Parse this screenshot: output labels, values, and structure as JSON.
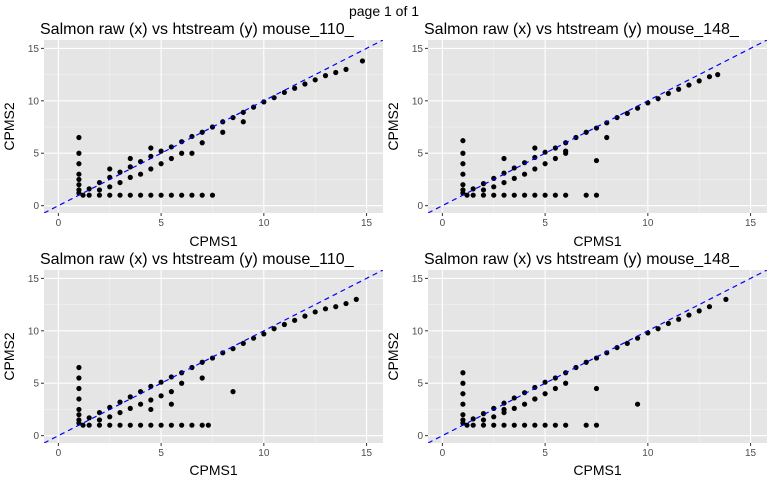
{
  "page_label": "page 1 of 1",
  "colors": {
    "panel_background": "#e5e5e5",
    "grid_major": "#ffffff",
    "points": "#000000",
    "reference_line": "#0000ff",
    "tick_marks": "#333333"
  },
  "chart_data": [
    {
      "type": "scatter",
      "title": "Salmon raw (x) vs htstream (y) mouse_110_",
      "xlabel": "CPMS1",
      "ylabel": "CPMS2",
      "xlim": [
        -0.7,
        15.8
      ],
      "ylim": [
        -0.7,
        15.8
      ],
      "x_ticks": [
        0,
        5,
        10,
        15
      ],
      "y_ticks": [
        0,
        5,
        10,
        15
      ],
      "grid": true,
      "reference_line": {
        "slope": 1,
        "intercept": 0,
        "style": "dashed"
      },
      "series": [
        {
          "x": [
            1.0,
            1.0,
            1.0,
            1.0,
            1.0,
            1.0,
            1.0,
            1.0,
            1.2,
            1.5,
            2.0,
            2.5,
            3.0,
            3.5,
            4.0,
            4.5,
            5.0,
            5.5,
            6.0,
            6.5,
            7.0,
            7.5,
            1.5,
            2.0,
            2.5,
            3.0,
            3.5,
            4.0,
            4.5,
            5.0,
            5.5,
            6.0,
            6.5,
            7.0,
            7.5,
            8.0,
            8.5,
            9.0,
            9.5,
            10.0,
            10.5,
            11.0,
            11.5,
            12.0,
            12.5,
            13.0,
            13.5,
            14.0,
            14.8,
            2.0,
            2.5,
            3.0,
            3.5,
            4.0,
            4.5,
            5.0,
            5.5,
            6.0,
            7.0,
            8.0,
            9.0,
            2.5,
            3.5,
            4.5,
            6.5
          ],
          "y": [
            6.5,
            5.0,
            4.0,
            3.0,
            2.5,
            2.0,
            1.5,
            1.2,
            1.0,
            1.0,
            1.0,
            1.0,
            1.0,
            1.0,
            1.0,
            1.0,
            1.0,
            1.0,
            1.0,
            1.0,
            1.0,
            1.0,
            1.6,
            2.2,
            2.7,
            3.2,
            3.7,
            4.2,
            4.7,
            5.2,
            5.6,
            6.1,
            6.6,
            7.0,
            7.5,
            8.0,
            8.4,
            8.9,
            9.4,
            9.9,
            10.3,
            10.8,
            11.2,
            11.6,
            12.0,
            12.4,
            12.7,
            13.0,
            13.8,
            1.5,
            1.8,
            2.2,
            2.7,
            3.0,
            3.5,
            4.0,
            4.5,
            5.0,
            6.0,
            7.0,
            8.0,
            3.5,
            4.5,
            5.5,
            5.0
          ]
        }
      ]
    },
    {
      "type": "scatter",
      "title": "Salmon raw (x) vs htstream (y) mouse_148_",
      "xlabel": "CPMS1",
      "ylabel": "CPMS2",
      "xlim": [
        -0.7,
        15.8
      ],
      "ylim": [
        -0.7,
        15.8
      ],
      "x_ticks": [
        0,
        5,
        10,
        15
      ],
      "y_ticks": [
        0,
        5,
        10,
        15
      ],
      "grid": true,
      "reference_line": {
        "slope": 1,
        "intercept": 0,
        "style": "dashed"
      },
      "series": [
        {
          "x": [
            1.0,
            1.0,
            1.0,
            1.0,
            1.0,
            1.0,
            1.0,
            1.2,
            1.5,
            2.0,
            2.5,
            3.0,
            3.5,
            4.0,
            4.5,
            5.0,
            5.5,
            6.0,
            7.0,
            7.5,
            1.5,
            2.0,
            2.5,
            3.0,
            3.5,
            4.0,
            4.5,
            5.0,
            5.5,
            6.0,
            6.5,
            7.0,
            7.5,
            8.0,
            8.5,
            9.0,
            9.5,
            10.0,
            10.5,
            11.0,
            11.5,
            12.0,
            12.5,
            13.0,
            13.4,
            2.0,
            2.5,
            3.0,
            3.5,
            4.0,
            4.5,
            5.0,
            5.5,
            6.0,
            7.5,
            8.0,
            3.0,
            4.5,
            6.0
          ],
          "y": [
            6.2,
            5.0,
            4.0,
            3.0,
            2.0,
            1.5,
            1.2,
            1.0,
            1.0,
            1.0,
            1.0,
            1.0,
            1.0,
            1.0,
            1.0,
            1.0,
            1.0,
            1.0,
            1.0,
            1.0,
            1.6,
            2.1,
            2.6,
            3.1,
            3.6,
            4.1,
            4.6,
            5.1,
            5.5,
            6.0,
            6.5,
            7.0,
            7.4,
            7.9,
            8.4,
            8.8,
            9.3,
            9.8,
            10.2,
            10.7,
            11.1,
            11.5,
            11.9,
            12.3,
            12.5,
            1.5,
            1.8,
            2.2,
            2.6,
            3.0,
            3.5,
            4.0,
            4.5,
            5.0,
            4.3,
            6.5,
            4.5,
            5.5,
            5.2
          ]
        }
      ]
    },
    {
      "type": "scatter",
      "title": "Salmon raw (x) vs htstream (y) mouse_110_",
      "xlabel": "CPMS1",
      "ylabel": "CPMS2",
      "xlim": [
        -0.7,
        15.8
      ],
      "ylim": [
        -0.7,
        15.8
      ],
      "x_ticks": [
        0,
        5,
        10,
        15
      ],
      "y_ticks": [
        0,
        5,
        10,
        15
      ],
      "grid": true,
      "reference_line": {
        "slope": 1,
        "intercept": 0,
        "style": "dashed"
      },
      "series": [
        {
          "x": [
            1.0,
            1.0,
            1.0,
            1.0,
            1.0,
            1.0,
            1.0,
            1.0,
            1.2,
            1.5,
            2.0,
            2.5,
            3.0,
            3.5,
            4.0,
            4.5,
            5.0,
            5.5,
            6.0,
            6.5,
            7.0,
            7.3,
            1.5,
            2.0,
            2.5,
            3.0,
            3.5,
            4.0,
            4.5,
            5.0,
            5.5,
            6.0,
            6.5,
            7.0,
            7.5,
            8.0,
            8.5,
            9.0,
            9.5,
            10.0,
            10.5,
            11.0,
            11.5,
            12.0,
            12.5,
            13.0,
            13.5,
            14.0,
            14.5,
            2.0,
            2.5,
            3.0,
            3.5,
            4.0,
            4.5,
            5.0,
            5.5,
            6.0,
            7.0,
            8.5,
            4.5,
            5.5
          ],
          "y": [
            6.5,
            5.5,
            4.5,
            3.5,
            2.5,
            2.0,
            1.5,
            1.2,
            1.0,
            1.0,
            1.0,
            1.0,
            1.0,
            1.0,
            1.0,
            1.0,
            1.0,
            1.0,
            1.0,
            1.0,
            1.0,
            1.0,
            1.7,
            2.2,
            2.7,
            3.2,
            3.7,
            4.2,
            4.7,
            5.1,
            5.6,
            6.0,
            6.5,
            7.0,
            7.4,
            7.9,
            8.3,
            8.8,
            9.3,
            9.7,
            10.2,
            10.6,
            11.0,
            11.4,
            11.8,
            12.1,
            12.3,
            12.6,
            13.0,
            1.5,
            1.8,
            2.2,
            2.6,
            3.0,
            3.4,
            3.8,
            4.2,
            5.0,
            5.5,
            4.2,
            2.5,
            3.0
          ]
        }
      ]
    },
    {
      "type": "scatter",
      "title": "Salmon raw (x) vs htstream (y) mouse_148_",
      "xlabel": "CPMS1",
      "ylabel": "CPMS2",
      "xlim": [
        -0.7,
        15.8
      ],
      "ylim": [
        -0.7,
        15.8
      ],
      "x_ticks": [
        0,
        5,
        10,
        15
      ],
      "y_ticks": [
        0,
        5,
        10,
        15
      ],
      "grid": true,
      "reference_line": {
        "slope": 1,
        "intercept": 0,
        "style": "dashed"
      },
      "series": [
        {
          "x": [
            1.0,
            1.0,
            1.0,
            1.0,
            1.0,
            1.0,
            1.0,
            1.2,
            1.5,
            2.0,
            2.5,
            3.0,
            3.5,
            4.0,
            4.5,
            5.0,
            5.5,
            6.0,
            7.0,
            7.5,
            1.5,
            2.0,
            2.5,
            3.0,
            3.5,
            4.0,
            4.5,
            5.0,
            5.5,
            6.0,
            6.5,
            7.0,
            7.5,
            8.0,
            8.5,
            9.0,
            9.5,
            10.0,
            10.5,
            11.0,
            11.5,
            12.0,
            12.5,
            13.0,
            13.8,
            2.0,
            2.5,
            3.0,
            3.5,
            4.0,
            4.5,
            5.0,
            5.5,
            6.0,
            7.5,
            9.5,
            3.0,
            4.5
          ],
          "y": [
            6.0,
            5.0,
            4.0,
            3.0,
            2.0,
            1.5,
            1.2,
            1.0,
            1.0,
            1.0,
            1.0,
            1.0,
            1.0,
            1.0,
            1.0,
            1.0,
            1.0,
            1.0,
            1.0,
            1.0,
            1.6,
            2.1,
            2.6,
            3.1,
            3.6,
            4.1,
            4.6,
            5.1,
            5.5,
            6.0,
            6.5,
            7.0,
            7.4,
            7.9,
            8.4,
            8.8,
            9.3,
            9.8,
            10.2,
            10.7,
            11.1,
            11.5,
            11.9,
            12.3,
            13.0,
            1.5,
            1.8,
            2.2,
            2.6,
            3.0,
            3.5,
            4.0,
            4.5,
            5.0,
            4.5,
            3.0,
            2.5,
            3.5
          ]
        }
      ]
    }
  ]
}
